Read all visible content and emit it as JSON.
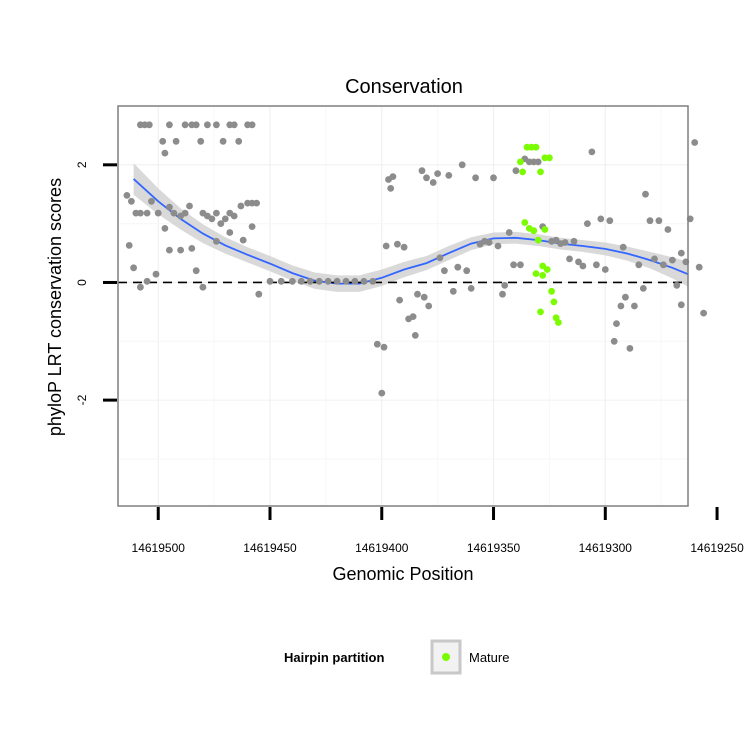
{
  "chart_data": {
    "type": "scatter",
    "title": "Conservation",
    "xlabel": "Genomic Position",
    "ylabel": "phyloP LRT conservation scores",
    "xlim": [
      14619263,
      14619518
    ],
    "x_reversed": true,
    "ylim": [
      -3.8,
      3.0
    ],
    "x_ticks": [
      14619500,
      14619450,
      14619400,
      14619350,
      14619300,
      14619250
    ],
    "y_ticks": [
      2,
      0,
      -2
    ],
    "y_tick_labels": [
      "2",
      "0",
      "-2"
    ],
    "reference_line": 0,
    "colors": {
      "gray_points": "#8c8c8c",
      "mature_points": "#7cfc00",
      "smooth": "#3366ff",
      "ribbon": "#d0d0d0",
      "frame": "#7f7f7f"
    },
    "legend": {
      "title": "Hairpin partition",
      "entries": [
        "Mature"
      ]
    },
    "smooth_curve": [
      [
        14619511,
        1.76
      ],
      [
        14619500,
        1.38
      ],
      [
        14619490,
        1.08
      ],
      [
        14619480,
        0.83
      ],
      [
        14619470,
        0.63
      ],
      [
        14619460,
        0.47
      ],
      [
        14619450,
        0.32
      ],
      [
        14619440,
        0.16
      ],
      [
        14619430,
        0.03
      ],
      [
        14619420,
        -0.02
      ],
      [
        14619410,
        -0.02
      ],
      [
        14619400,
        0.08
      ],
      [
        14619390,
        0.22
      ],
      [
        14619380,
        0.33
      ],
      [
        14619370,
        0.5
      ],
      [
        14619360,
        0.66
      ],
      [
        14619350,
        0.75
      ],
      [
        14619340,
        0.76
      ],
      [
        14619330,
        0.72
      ],
      [
        14619320,
        0.66
      ],
      [
        14619310,
        0.62
      ],
      [
        14619300,
        0.57
      ],
      [
        14619290,
        0.49
      ],
      [
        14619280,
        0.38
      ],
      [
        14619270,
        0.25
      ],
      [
        14619263,
        0.14
      ]
    ],
    "ribbon_halfwidth": [
      0.27,
      0.22,
      0.18,
      0.16,
      0.14,
      0.13,
      0.13,
      0.13,
      0.14,
      0.14,
      0.14,
      0.14,
      0.13,
      0.12,
      0.12,
      0.11,
      0.1,
      0.1,
      0.1,
      0.1,
      0.1,
      0.11,
      0.12,
      0.14,
      0.18,
      0.21
    ],
    "series": [
      {
        "name": "gray",
        "points": [
          [
            14619508,
            2.68
          ],
          [
            14619506,
            2.68
          ],
          [
            14619504,
            2.68
          ],
          [
            14619498,
            2.4
          ],
          [
            14619497,
            2.2
          ],
          [
            14619495,
            2.68
          ],
          [
            14619492,
            2.4
          ],
          [
            14619488,
            2.68
          ],
          [
            14619485,
            2.68
          ],
          [
            14619483,
            2.68
          ],
          [
            14619481,
            2.4
          ],
          [
            14619478,
            2.68
          ],
          [
            14619474,
            2.68
          ],
          [
            14619471,
            2.4
          ],
          [
            14619468,
            2.68
          ],
          [
            14619466,
            2.68
          ],
          [
            14619464,
            2.4
          ],
          [
            14619460,
            2.68
          ],
          [
            14619458,
            2.68
          ],
          [
            14619514,
            1.48
          ],
          [
            14619512,
            1.38
          ],
          [
            14619510,
            1.18
          ],
          [
            14619508,
            1.18
          ],
          [
            14619505,
            1.18
          ],
          [
            14619503,
            1.38
          ],
          [
            14619500,
            1.18
          ],
          [
            14619497,
            0.92
          ],
          [
            14619495,
            1.28
          ],
          [
            14619493,
            1.18
          ],
          [
            14619490,
            1.13
          ],
          [
            14619488,
            1.18
          ],
          [
            14619486,
            1.3
          ],
          [
            14619480,
            1.18
          ],
          [
            14619478,
            1.13
          ],
          [
            14619476,
            1.08
          ],
          [
            14619474,
            1.18
          ],
          [
            14619472,
            1.0
          ],
          [
            14619470,
            1.08
          ],
          [
            14619468,
            1.18
          ],
          [
            14619466,
            1.13
          ],
          [
            14619463,
            1.3
          ],
          [
            14619460,
            1.35
          ],
          [
            14619458,
            1.35
          ],
          [
            14619456,
            1.35
          ],
          [
            14619513,
            0.63
          ],
          [
            14619511,
            0.25
          ],
          [
            14619508,
            -0.08
          ],
          [
            14619505,
            0.02
          ],
          [
            14619501,
            0.14
          ],
          [
            14619495,
            0.55
          ],
          [
            14619490,
            0.55
          ],
          [
            14619485,
            0.58
          ],
          [
            14619483,
            0.2
          ],
          [
            14619480,
            -0.08
          ],
          [
            14619474,
            0.7
          ],
          [
            14619468,
            0.85
          ],
          [
            14619462,
            0.72
          ],
          [
            14619458,
            0.95
          ],
          [
            14619455,
            -0.2
          ],
          [
            14619450,
            0.02
          ],
          [
            14619445,
            0.02
          ],
          [
            14619440,
            0.02
          ],
          [
            14619436,
            0.02
          ],
          [
            14619432,
            0.02
          ],
          [
            14619428,
            0.02
          ],
          [
            14619424,
            0.02
          ],
          [
            14619420,
            0.02
          ],
          [
            14619416,
            0.02
          ],
          [
            14619412,
            0.02
          ],
          [
            14619408,
            0.02
          ],
          [
            14619404,
            0.02
          ],
          [
            14619402,
            -1.05
          ],
          [
            14619399,
            -1.1
          ],
          [
            14619400,
            -1.88
          ],
          [
            14619398,
            0.62
          ],
          [
            14619397,
            1.75
          ],
          [
            14619396,
            1.6
          ],
          [
            14619395,
            1.8
          ],
          [
            14619393,
            0.65
          ],
          [
            14619392,
            -0.3
          ],
          [
            14619390,
            0.6
          ],
          [
            14619388,
            -0.62
          ],
          [
            14619386,
            -0.58
          ],
          [
            14619385,
            -0.9
          ],
          [
            14619384,
            -0.2
          ],
          [
            14619382,
            1.9
          ],
          [
            14619381,
            -0.25
          ],
          [
            14619380,
            1.78
          ],
          [
            14619379,
            -0.4
          ],
          [
            14619377,
            1.7
          ],
          [
            14619375,
            1.85
          ],
          [
            14619374,
            0.42
          ],
          [
            14619372,
            0.2
          ],
          [
            14619370,
            1.82
          ],
          [
            14619368,
            -0.15
          ],
          [
            14619366,
            0.26
          ],
          [
            14619364,
            2.0
          ],
          [
            14619362,
            0.2
          ],
          [
            14619360,
            -0.1
          ],
          [
            14619358,
            1.78
          ],
          [
            14619356,
            0.65
          ],
          [
            14619354,
            0.7
          ],
          [
            14619352,
            0.68
          ],
          [
            14619350,
            1.78
          ],
          [
            14619348,
            0.62
          ],
          [
            14619346,
            -0.2
          ],
          [
            14619345,
            -0.05
          ],
          [
            14619343,
            0.85
          ],
          [
            14619341,
            0.3
          ],
          [
            14619340,
            1.9
          ],
          [
            14619338,
            0.3
          ],
          [
            14619336,
            2.1
          ],
          [
            14619334,
            2.05
          ],
          [
            14619332,
            2.05
          ],
          [
            14619330,
            2.05
          ],
          [
            14619328,
            0.95
          ],
          [
            14619324,
            0.7
          ],
          [
            14619322,
            0.72
          ],
          [
            14619320,
            0.66
          ],
          [
            14619318,
            0.68
          ],
          [
            14619316,
            0.4
          ],
          [
            14619314,
            0.7
          ],
          [
            14619312,
            0.35
          ],
          [
            14619310,
            0.28
          ],
          [
            14619308,
            1.0
          ],
          [
            14619306,
            2.22
          ],
          [
            14619304,
            0.3
          ],
          [
            14619302,
            1.08
          ],
          [
            14619300,
            0.22
          ],
          [
            14619298,
            1.05
          ],
          [
            14619296,
            -1.0
          ],
          [
            14619295,
            -0.7
          ],
          [
            14619293,
            -0.4
          ],
          [
            14619292,
            0.6
          ],
          [
            14619291,
            -0.25
          ],
          [
            14619289,
            -1.12
          ],
          [
            14619287,
            -0.4
          ],
          [
            14619285,
            0.3
          ],
          [
            14619283,
            -0.1
          ],
          [
            14619282,
            1.5
          ],
          [
            14619280,
            1.05
          ],
          [
            14619278,
            0.4
          ],
          [
            14619276,
            1.05
          ],
          [
            14619274,
            0.3
          ],
          [
            14619272,
            0.9
          ],
          [
            14619270,
            0.38
          ],
          [
            14619268,
            -0.05
          ],
          [
            14619266,
            0.5
          ],
          [
            14619264,
            0.35
          ],
          [
            14619262,
            1.08
          ],
          [
            14619260,
            2.38
          ],
          [
            14619258,
            0.26
          ],
          [
            14619256,
            -0.52
          ],
          [
            14619266,
            -0.38
          ]
        ]
      },
      {
        "name": "Mature",
        "points": [
          [
            14619338,
            2.05
          ],
          [
            14619337,
            1.88
          ],
          [
            14619335,
            2.3
          ],
          [
            14619333,
            2.3
          ],
          [
            14619331,
            2.3
          ],
          [
            14619329,
            1.88
          ],
          [
            14619327,
            2.12
          ],
          [
            14619325,
            2.12
          ],
          [
            14619336,
            1.02
          ],
          [
            14619334,
            0.92
          ],
          [
            14619332,
            0.88
          ],
          [
            14619330,
            0.72
          ],
          [
            14619328,
            0.28
          ],
          [
            14619327,
            0.9
          ],
          [
            14619326,
            0.22
          ],
          [
            14619324,
            -0.15
          ],
          [
            14619323,
            -0.33
          ],
          [
            14619322,
            -0.6
          ],
          [
            14619321,
            -0.68
          ],
          [
            14619329,
            -0.5
          ],
          [
            14619331,
            0.15
          ],
          [
            14619328,
            0.12
          ]
        ]
      }
    ]
  }
}
